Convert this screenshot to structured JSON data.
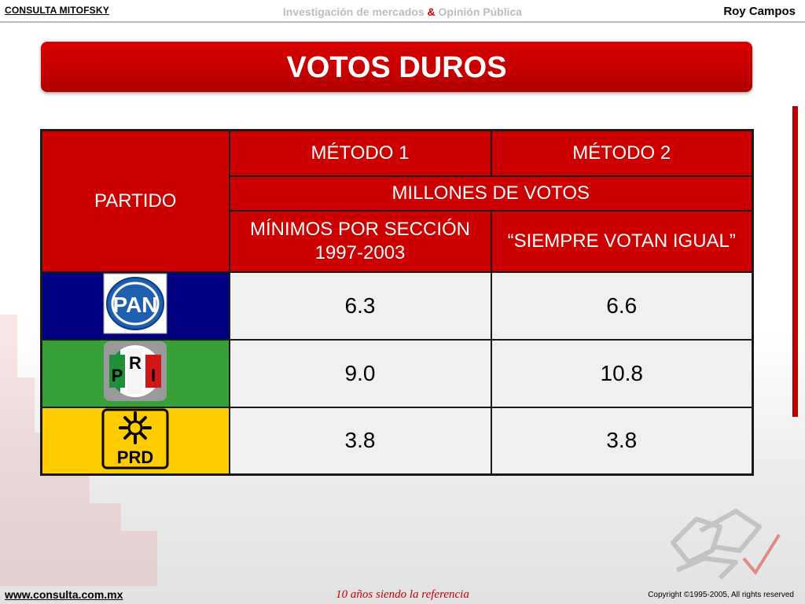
{
  "header": {
    "brand": "CONSULTA MITOFSKY",
    "tagline_left": "Investigación de mercados ",
    "tagline_amp": "&",
    "tagline_right": " Opinión Pública",
    "author": "Roy Campos"
  },
  "title": "VOTOS DUROS",
  "table": {
    "partido_header": "PARTIDO",
    "method1_header": "MÉTODO 1",
    "method2_header": "MÉTODO 2",
    "units_header": "MILLONES DE VOTOS",
    "method1_desc": "MÍNIMOS POR SECCIÓN 1997-2003",
    "method2_desc": "“SIEMPRE VOTAN IGUAL”",
    "rows": [
      {
        "party": "PAN",
        "logo_icon": "pan-logo-icon",
        "color": "#000080",
        "method1": "6.3",
        "method2": "6.6"
      },
      {
        "party": "PRI",
        "logo_icon": "pri-logo-icon",
        "color": "#38a038",
        "method1": "9.0",
        "method2": "10.8"
      },
      {
        "party": "PRD",
        "logo_icon": "prd-logo-icon",
        "color": "#ffcc00",
        "method1": "3.8",
        "method2": "3.8"
      }
    ]
  },
  "footer": {
    "url": "www.consulta.com.mx",
    "slogan": "10 años siendo la referencia",
    "copyright": "Copyright ©1995-2005, All rights reserved"
  },
  "colors": {
    "accent": "#cc0000",
    "table_cell": "#f0f0f0"
  }
}
